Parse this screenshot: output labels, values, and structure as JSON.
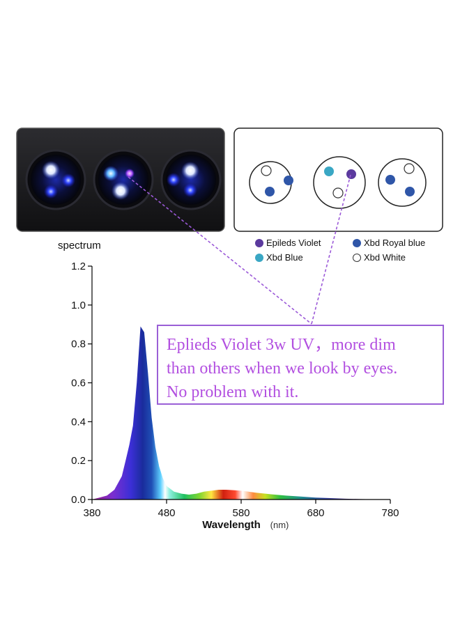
{
  "lamp": {
    "pucks": [
      {
        "leds": [
          "white",
          "royal-blue",
          "royal-blue"
        ]
      },
      {
        "leds": [
          "blue",
          "violet",
          "white"
        ]
      },
      {
        "leds": [
          "white",
          "royal-blue",
          "royal-blue"
        ]
      }
    ]
  },
  "diagram": {
    "pucks": [
      {
        "leds": [
          "white",
          "royal-blue",
          "royal-blue"
        ]
      },
      {
        "leds": [
          "blue",
          "violet",
          "white"
        ]
      },
      {
        "leds": [
          "white",
          "royal-blue",
          "royal-blue"
        ]
      }
    ]
  },
  "legend": {
    "items": [
      {
        "label": "Epileds Violet",
        "color": "#5b3a9e"
      },
      {
        "label": "Xbd Royal blue",
        "color": "#2f56a8"
      },
      {
        "label": "Xbd Blue",
        "color": "#3aa7c4"
      },
      {
        "label": "Xbd White",
        "color": "#ffffff"
      }
    ]
  },
  "spectrum_title": "spectrum",
  "callout": {
    "text": "Eplieds Violet 3w UV，more dim\nthan others when we look by eyes.\nNo problem with it."
  },
  "colors": {
    "callout_border": "#9a5fd6",
    "callout_text": "#b24fe0",
    "pointer_line": "#9b59d8"
  },
  "chart_data": {
    "type": "area",
    "title": "spectrum",
    "xlabel": "Wavelength",
    "xlabel_unit": "(nm)",
    "ylabel": "",
    "xlim": [
      380,
      780
    ],
    "ylim": [
      0,
      1.2
    ],
    "xticks": [
      "380",
      "480",
      "580",
      "680",
      "780"
    ],
    "yticks": [
      "0.0",
      "0.2",
      "0.4",
      "0.6",
      "0.8",
      "1.0",
      "1.2"
    ],
    "grid": false,
    "fill": "visible-spectrum-gradient",
    "series": [
      {
        "x": [
          380,
          390,
          400,
          410,
          420,
          425,
          430,
          435,
          440,
          445,
          450,
          455,
          460,
          465,
          470,
          475,
          480,
          490,
          500,
          510,
          520,
          530,
          540,
          550,
          560,
          570,
          580,
          590,
          600,
          620,
          640,
          660,
          680,
          700,
          720,
          740,
          760,
          780
        ],
        "y": [
          0.0,
          0.01,
          0.02,
          0.05,
          0.12,
          0.2,
          0.28,
          0.38,
          0.6,
          0.89,
          0.86,
          0.65,
          0.42,
          0.27,
          0.17,
          0.11,
          0.07,
          0.04,
          0.03,
          0.025,
          0.03,
          0.04,
          0.045,
          0.05,
          0.05,
          0.048,
          0.045,
          0.04,
          0.035,
          0.027,
          0.02,
          0.015,
          0.01,
          0.007,
          0.004,
          0.002,
          0.001,
          0.0
        ]
      }
    ]
  }
}
